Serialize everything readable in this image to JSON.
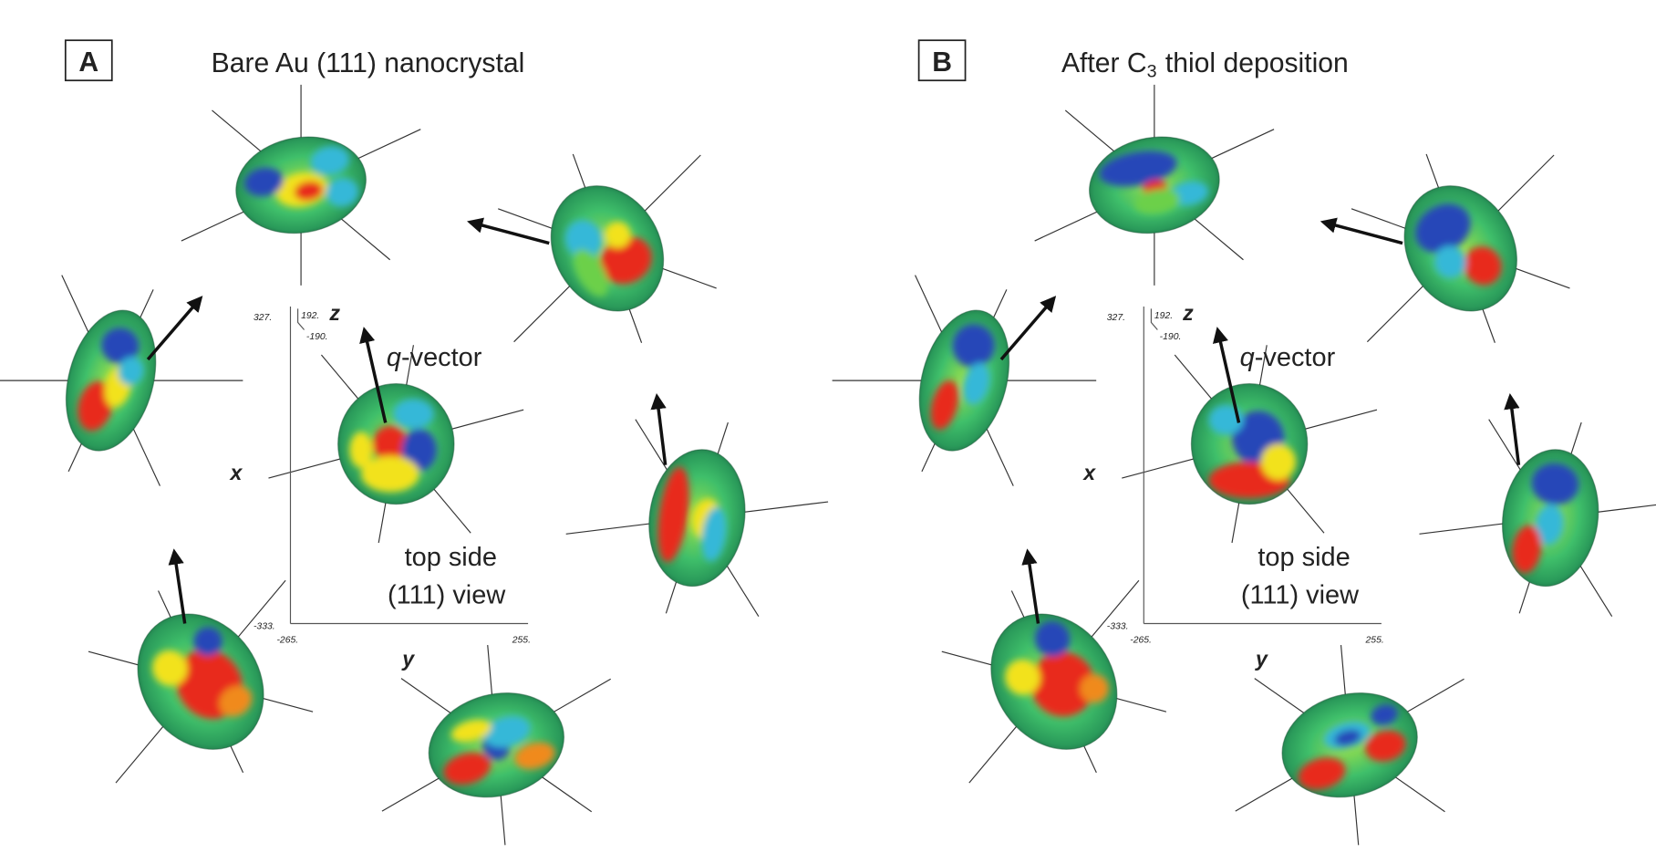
{
  "panels": [
    {
      "label": "A",
      "title": "Bare Au (111) nanocrystal",
      "vector_symbol": "q",
      "vector_text": "-vector",
      "view_line1": "top side",
      "view_line2": "(111) view",
      "axis_x": "x",
      "axis_y": "y",
      "axis_z": "z",
      "ticks": [
        "327.",
        "192.",
        "-190.",
        "-333.",
        "-265.",
        "255."
      ]
    },
    {
      "label": "B",
      "title": "After C",
      "title_subscript": "3",
      "title_rest": "thiol deposition",
      "vector_symbol": "q",
      "vector_text": "-vector",
      "view_line1": "top side",
      "view_line2": "(111) view",
      "axis_x": "x",
      "axis_y": "y",
      "axis_z": "z",
      "ticks": [
        "327.",
        "192.",
        "-190.",
        "-333.",
        "-265.",
        "255."
      ]
    }
  ]
}
